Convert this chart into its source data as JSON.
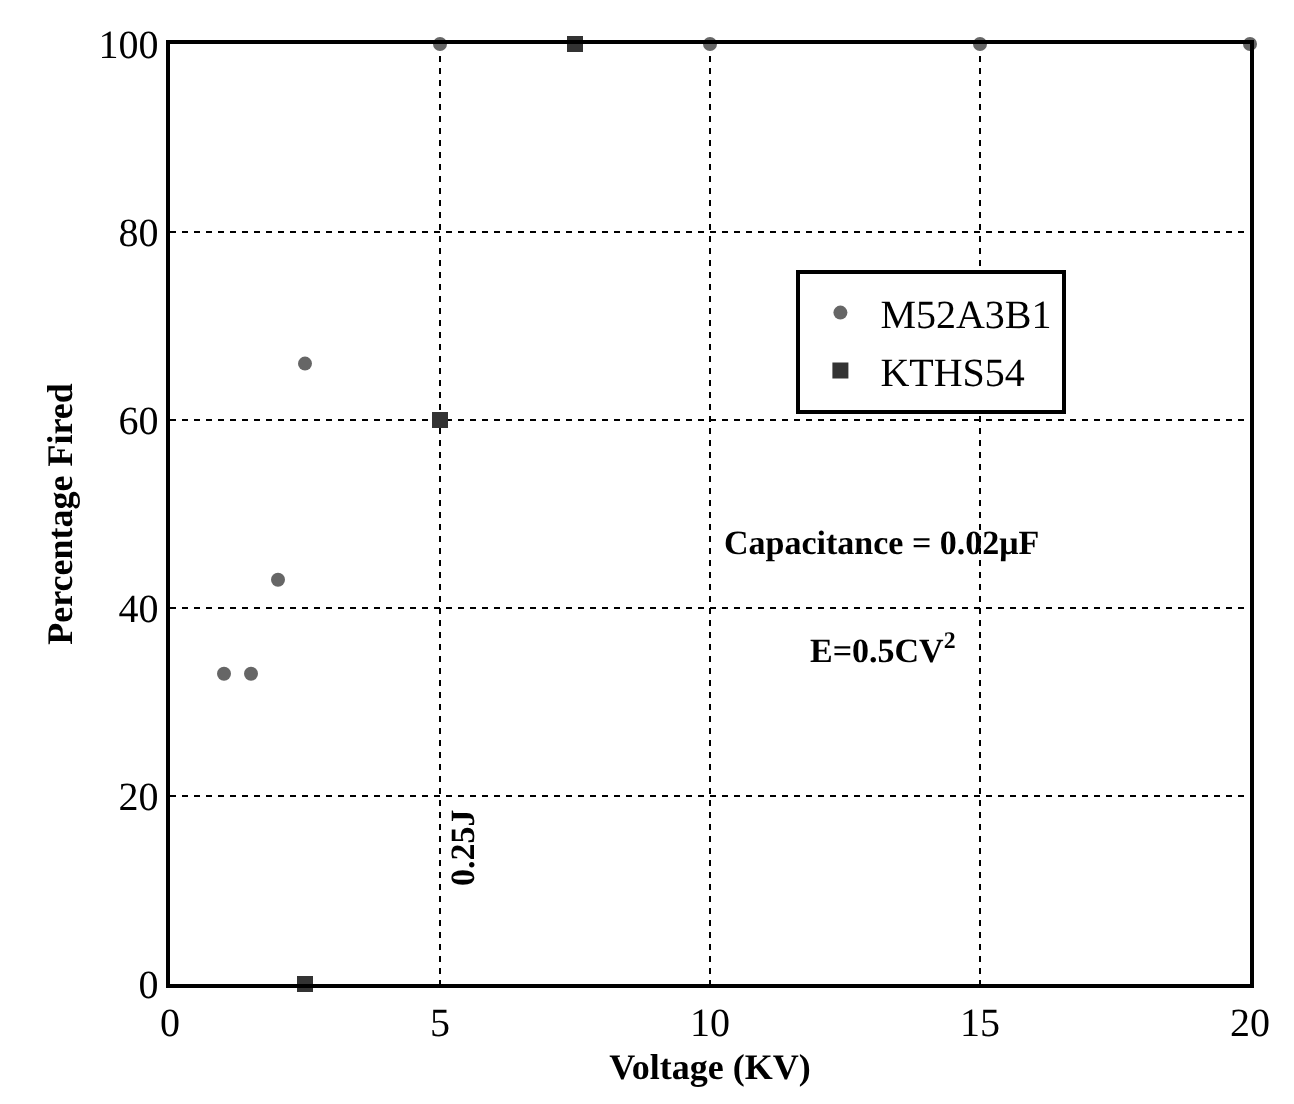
{
  "chart_data": {
    "type": "scatter",
    "xlabel": "Voltage (KV)",
    "ylabel": "Percentage Fired",
    "series": [
      {
        "name": "M52A3B1",
        "color": "#666666",
        "marker": "circle",
        "x": [
          1,
          1.5,
          2,
          2.5,
          5,
          10,
          15,
          20
        ],
        "values": [
          33,
          33,
          43,
          66,
          100,
          100,
          100,
          100
        ]
      },
      {
        "name": "KTHS54",
        "color": "#333333",
        "marker": "square",
        "x": [
          2.5,
          5,
          7.5
        ],
        "values": [
          0,
          60,
          100
        ]
      }
    ],
    "xlim": [
      0,
      20
    ],
    "xticks": [
      0,
      5,
      10,
      15,
      20
    ],
    "ylim": [
      0,
      100
    ],
    "yticks": [
      0,
      20,
      40,
      60,
      80,
      100
    ],
    "grid": true,
    "legend": "top right",
    "annotations": [
      "Capacitance = 0.02μF",
      "E=0.5CV$^{2}$",
      "0.25J"
    ]
  }
}
